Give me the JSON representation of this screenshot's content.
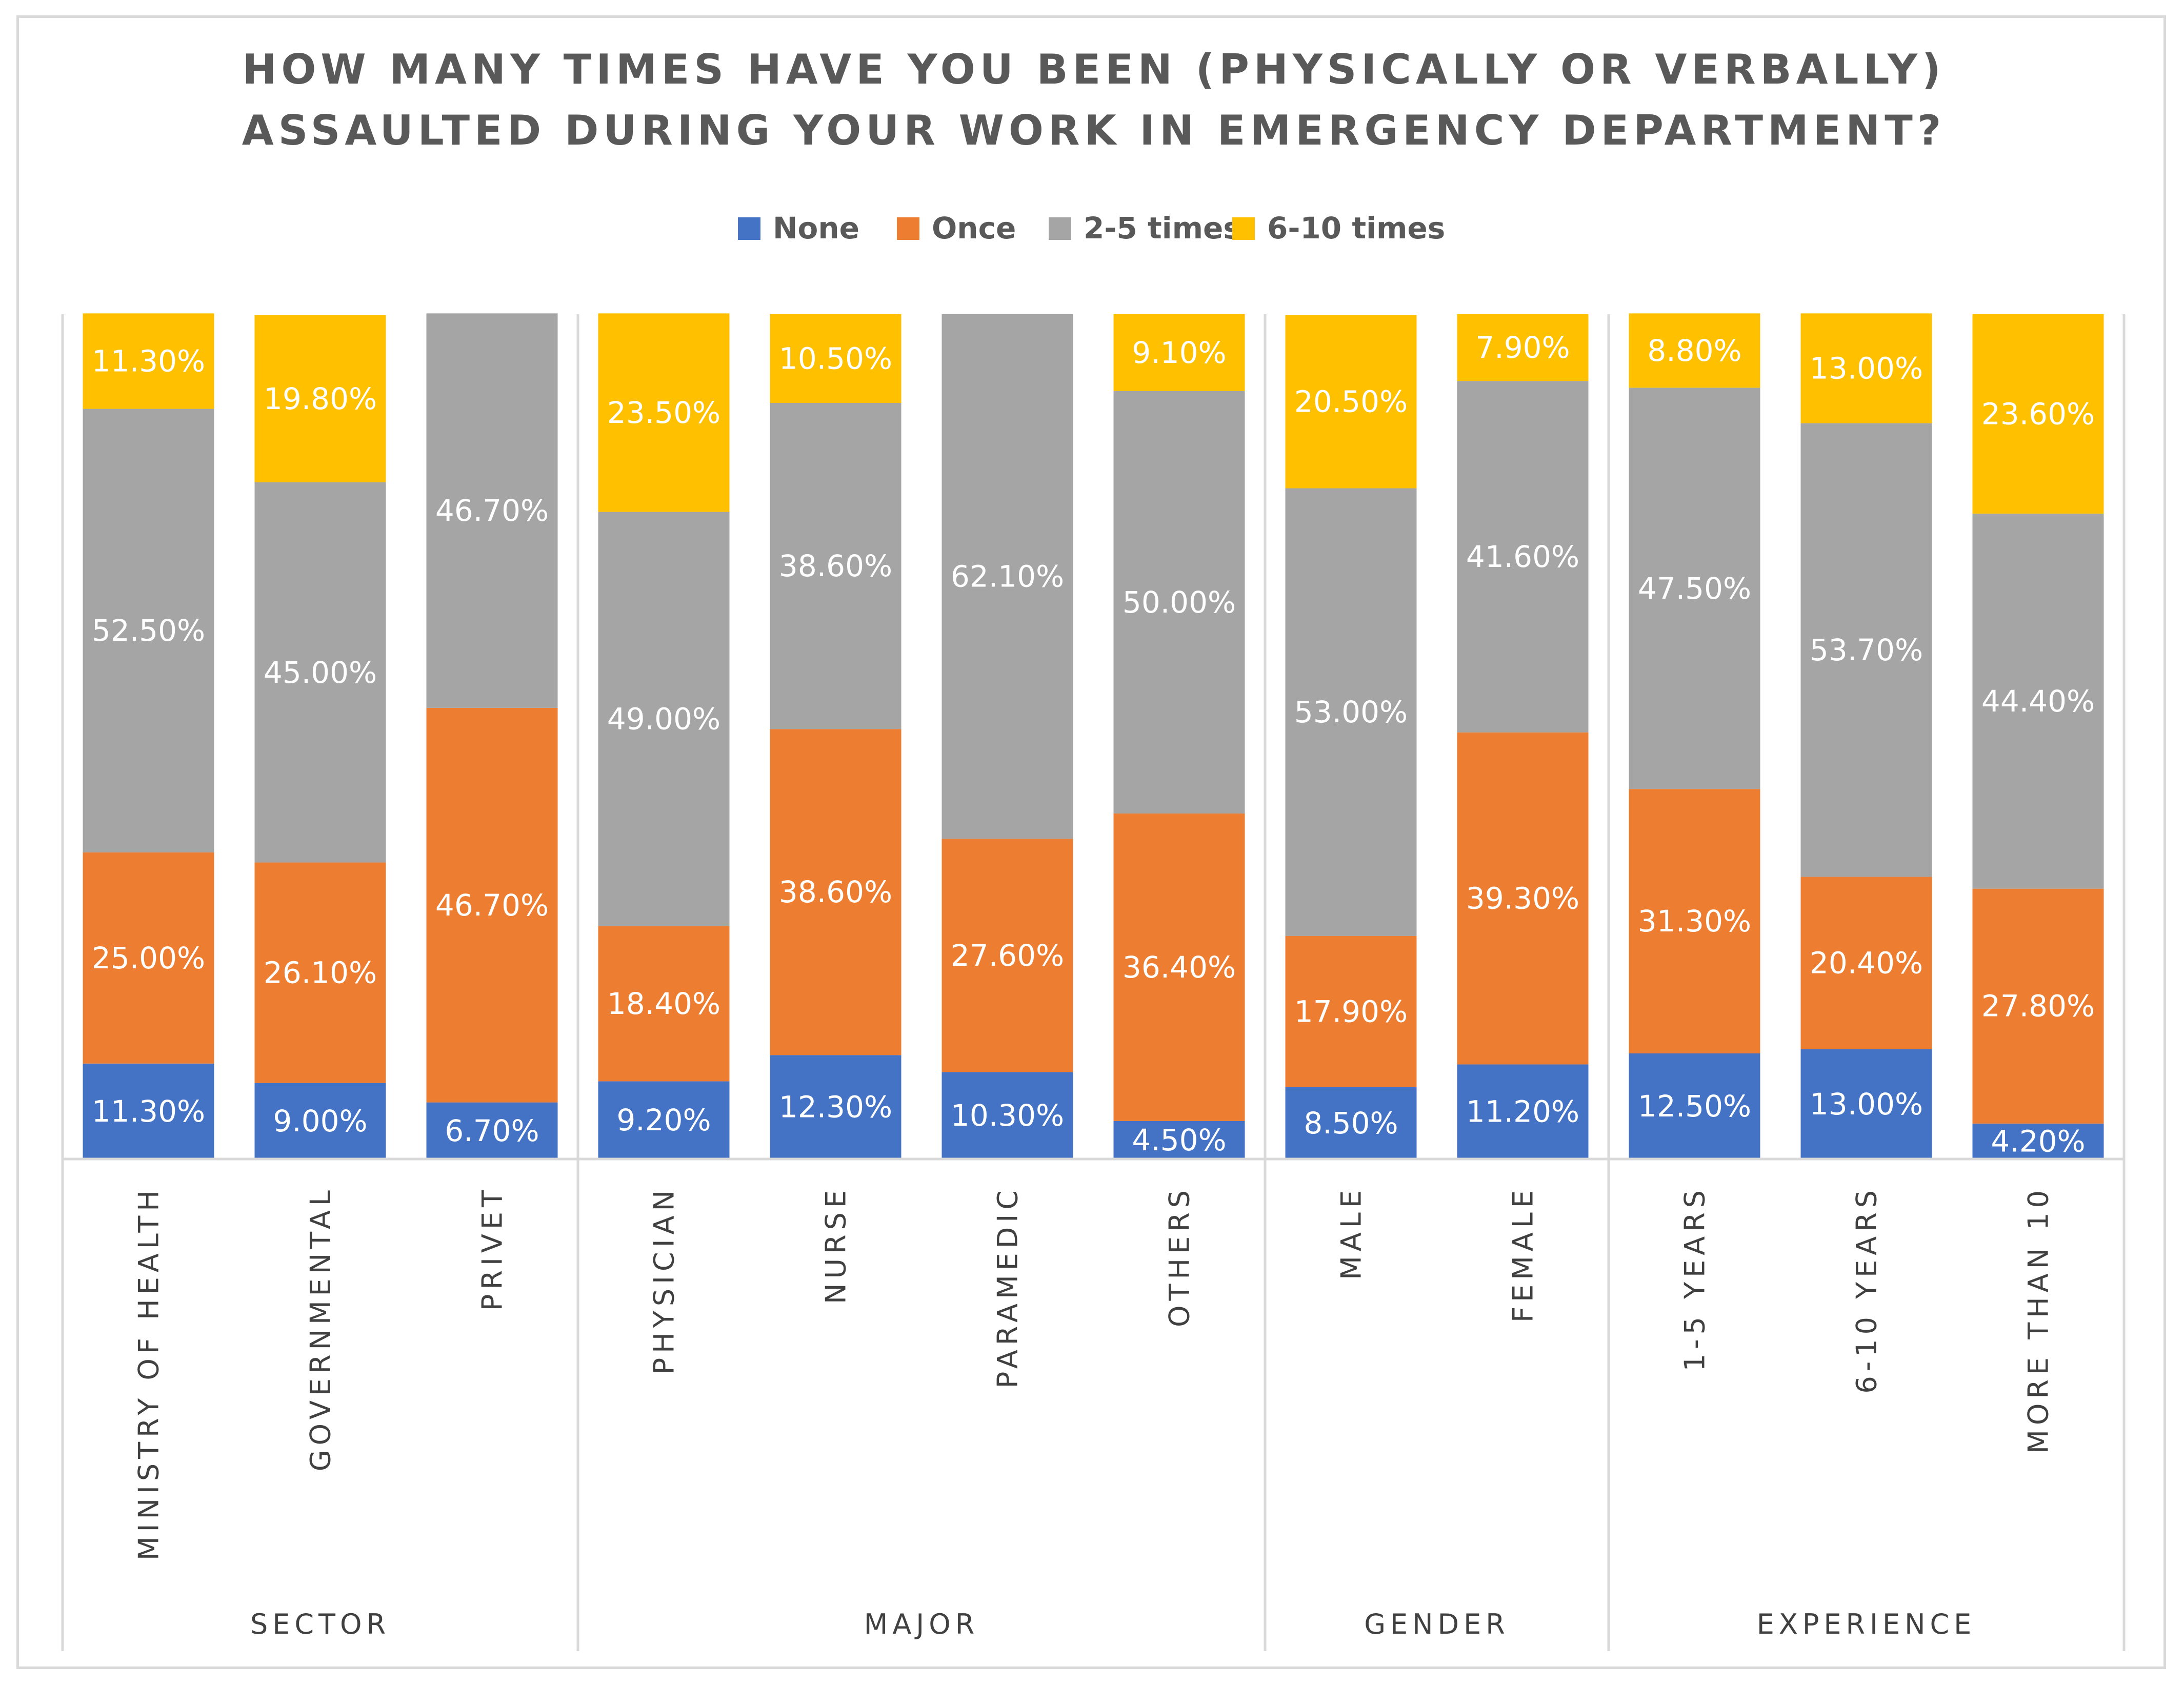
{
  "chart_data": {
    "type": "bar",
    "stacked": true,
    "normalized_100": true,
    "title_lines": [
      "HOW MANY TIMES HAVE YOU BEEN (PHYSICALLY OR VERBALLY)",
      "ASSAULTED DURING YOUR WORK IN EMERGENCY DEPARTMENT?"
    ],
    "legend_position": "top",
    "grid": false,
    "groups": [
      {
        "name": "SECTOR",
        "categories": [
          "MINISTRY OF HEALTH",
          "GOVERNMENTAL",
          "PRIVET"
        ]
      },
      {
        "name": "MAJOR",
        "categories": [
          "PHYSICIAN",
          "NURSE",
          "PARAMEDIC",
          "OTHERS"
        ]
      },
      {
        "name": "GENDER",
        "categories": [
          "MALE",
          "FEMALE"
        ]
      },
      {
        "name": "EXPERIENCE",
        "categories": [
          "1-5 YEARS",
          "6-10 YEARS",
          "MORE THAN 10"
        ]
      }
    ],
    "categories": [
      "MINISTRY OF HEALTH",
      "GOVERNMENTAL",
      "PRIVET",
      "PHYSICIAN",
      "NURSE",
      "PARAMEDIC",
      "OTHERS",
      "MALE",
      "FEMALE",
      "1-5 YEARS",
      "6-10 YEARS",
      "MORE THAN 10"
    ],
    "series": [
      {
        "name": "None",
        "color": "#4472c4",
        "values": [
          11.3,
          9.0,
          6.7,
          9.2,
          12.3,
          10.3,
          4.5,
          8.5,
          11.2,
          12.5,
          13.0,
          4.2
        ],
        "labels": [
          "11.30%",
          "9.00%",
          "6.70%",
          "9.20%",
          "12.30%",
          "10.30%",
          "4.50%",
          "8.50%",
          "11.20%",
          "12.50%",
          "13.00%",
          "4.20%"
        ]
      },
      {
        "name": "Once",
        "color": "#ed7d31",
        "values": [
          25.0,
          26.1,
          46.7,
          18.4,
          38.6,
          27.6,
          36.4,
          17.9,
          39.3,
          31.3,
          20.4,
          27.8
        ],
        "labels": [
          "25.00%",
          "26.10%",
          "46.70%",
          "18.40%",
          "38.60%",
          "27.60%",
          "36.40%",
          "17.90%",
          "39.30%",
          "31.30%",
          "20.40%",
          "27.80%"
        ]
      },
      {
        "name": "2-5 times",
        "color": "#a5a5a5",
        "values": [
          52.5,
          45.0,
          46.7,
          49.0,
          38.6,
          62.1,
          50.0,
          53.0,
          41.6,
          47.5,
          53.7,
          44.4
        ],
        "labels": [
          "52.50%",
          "45.00%",
          "46.70%",
          "49.00%",
          "38.60%",
          "62.10%",
          "50.00%",
          "53.00%",
          "41.60%",
          "47.50%",
          "53.70%",
          "44.40%"
        ]
      },
      {
        "name": "6-10 times",
        "color": "#ffc000",
        "values": [
          11.3,
          19.8,
          0,
          23.5,
          10.5,
          0,
          9.1,
          20.5,
          7.9,
          8.8,
          13.0,
          23.6
        ],
        "labels": [
          "11.30%",
          "19.80%",
          "",
          "23.50%",
          "10.50%",
          "",
          "9.10%",
          "20.50%",
          "7.90%",
          "8.80%",
          "13.00%",
          "23.60%"
        ]
      }
    ],
    "ylim": [
      0,
      100
    ]
  }
}
